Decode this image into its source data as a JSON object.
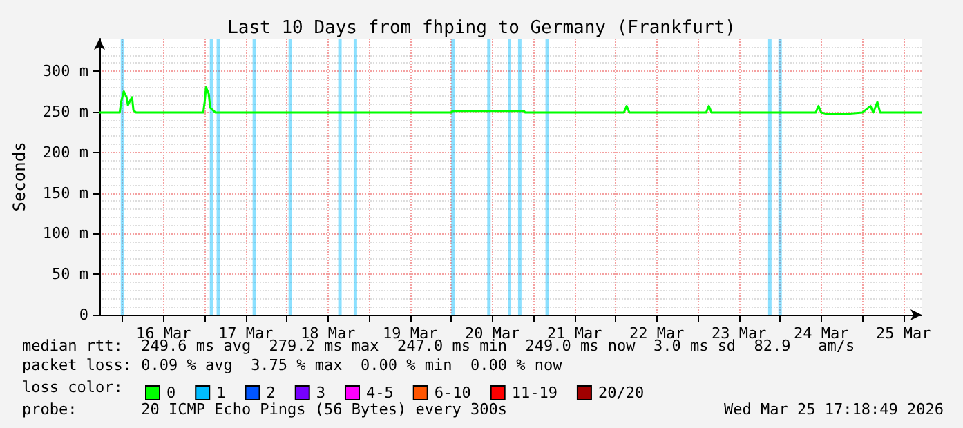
{
  "chart_data": {
    "type": "line",
    "title": "Last 10 Days from fhping to Germany (Frankfurt)",
    "ylabel": "Seconds",
    "legend_title": "loss color:",
    "legend": "bottom",
    "grid": true,
    "marker": "none",
    "line_style": "solid",
    "xlim": [
      "2026-03-15T17:18",
      "2026-03-25T17:18"
    ],
    "xticks": [
      {
        "value": "2026-03-16T00:00",
        "label": null
      },
      {
        "value": "2026-03-16T12:00",
        "label": "16 Mar"
      },
      {
        "value": "2026-03-17T00:00",
        "label": null
      },
      {
        "value": "2026-03-17T12:00",
        "label": "17 Mar"
      },
      {
        "value": "2026-03-18T00:00",
        "label": null
      },
      {
        "value": "2026-03-18T12:00",
        "label": "18 Mar"
      },
      {
        "value": "2026-03-19T00:00",
        "label": null
      },
      {
        "value": "2026-03-19T12:00",
        "label": "19 Mar"
      },
      {
        "value": "2026-03-20T00:00",
        "label": null
      },
      {
        "value": "2026-03-20T12:00",
        "label": "20 Mar"
      },
      {
        "value": "2026-03-21T00:00",
        "label": null
      },
      {
        "value": "2026-03-21T12:00",
        "label": "21 Mar"
      },
      {
        "value": "2026-03-22T00:00",
        "label": null
      },
      {
        "value": "2026-03-22T12:00",
        "label": "22 Mar"
      },
      {
        "value": "2026-03-23T00:00",
        "label": null
      },
      {
        "value": "2026-03-23T12:00",
        "label": "23 Mar"
      },
      {
        "value": "2026-03-24T00:00",
        "label": null
      },
      {
        "value": "2026-03-24T12:00",
        "label": "24 Mar"
      },
      {
        "value": "2026-03-25T00:00",
        "label": null
      },
      {
        "value": "2026-03-25T12:00",
        "label": "25 Mar"
      }
    ],
    "ylim": [
      0,
      340
    ],
    "yticks": [
      0,
      {
        "value": 50,
        "label": "50 m"
      },
      {
        "value": 100,
        "label": "100 m"
      },
      {
        "value": 150,
        "label": "150 m"
      },
      {
        "value": 200,
        "label": "200 m"
      },
      {
        "value": 250,
        "label": "250 m"
      },
      {
        "value": 300,
        "label": "300 m"
      }
    ],
    "x": [
      "2026-03-15T17:18",
      "2026-03-15T23:12",
      "2026-03-15T23:36",
      "2026-03-16T00:24",
      "2026-03-16T01:12",
      "2026-03-16T01:36",
      "2026-03-16T02:24",
      "2026-03-16T02:48",
      "2026-03-16T03:12",
      "2026-03-16T04:00",
      "2026-03-16T23:36",
      "2026-03-17T00:00",
      "2026-03-17T00:24",
      "2026-03-17T01:12",
      "2026-03-17T01:36",
      "2026-03-17T02:24",
      "2026-03-17T03:12",
      "2026-03-20T00:00",
      "2026-03-20T00:24",
      "2026-03-20T21:12",
      "2026-03-20T21:36",
      "2026-03-22T02:24",
      "2026-03-22T03:12",
      "2026-03-22T04:00",
      "2026-03-23T02:24",
      "2026-03-23T03:12",
      "2026-03-23T04:00",
      "2026-03-24T10:24",
      "2026-03-24T11:12",
      "2026-03-24T12:00",
      "2026-03-24T14:00",
      "2026-03-24T18:00",
      "2026-03-25T00:00",
      "2026-03-25T02:24",
      "2026-03-25T03:12",
      "2026-03-25T04:24",
      "2026-03-25T05:12",
      "2026-03-25T17:18"
    ],
    "series": [
      {
        "name": "0",
        "color": "#00ff00",
        "values": [
          249,
          249,
          262,
          275,
          268,
          258,
          265,
          268,
          252,
          249,
          249,
          262,
          280,
          272,
          255,
          252,
          249,
          249,
          251,
          251,
          249,
          249,
          257,
          249,
          249,
          257,
          249,
          249,
          257,
          249,
          247,
          247,
          249,
          257,
          249,
          262,
          249,
          249
        ]
      },
      {
        "name": "1",
        "color": "#00bbff",
        "values": [
          null,
          null,
          null,
          null,
          null,
          null,
          null,
          null,
          null,
          null,
          null,
          null,
          null,
          null,
          null,
          null,
          null,
          null,
          null,
          null,
          null,
          null,
          null,
          null,
          null,
          null,
          null,
          null,
          null,
          null,
          null,
          null,
          null,
          null,
          null,
          null,
          null,
          null
        ]
      },
      {
        "name": "2",
        "color": "#0055ff",
        "values": [
          null,
          null,
          null,
          null,
          null,
          null,
          null,
          null,
          null,
          null,
          null,
          null,
          null,
          null,
          null,
          null,
          null,
          null,
          null,
          null,
          null,
          null,
          null,
          null,
          null,
          null,
          null,
          null,
          null,
          null,
          null,
          null,
          null,
          null,
          null,
          null,
          null,
          null
        ]
      },
      {
        "name": "3",
        "color": "#7700ff",
        "values": [
          null,
          null,
          null,
          null,
          null,
          null,
          null,
          null,
          null,
          null,
          null,
          null,
          null,
          null,
          null,
          null,
          null,
          null,
          null,
          null,
          null,
          null,
          null,
          null,
          null,
          null,
          null,
          null,
          null,
          null,
          null,
          null,
          null,
          null,
          null,
          null,
          null,
          null
        ]
      },
      {
        "name": "4-5",
        "color": "#ff00ff",
        "values": [
          null,
          null,
          null,
          null,
          null,
          null,
          null,
          null,
          null,
          null,
          null,
          null,
          null,
          null,
          null,
          null,
          null,
          null,
          null,
          null,
          null,
          null,
          null,
          null,
          null,
          null,
          null,
          null,
          null,
          null,
          null,
          null,
          null,
          null,
          null,
          null,
          null,
          null
        ]
      },
      {
        "name": "6-10",
        "color": "#ff5500",
        "values": [
          null,
          null,
          null,
          null,
          null,
          null,
          null,
          null,
          null,
          null,
          null,
          null,
          null,
          null,
          null,
          null,
          null,
          null,
          null,
          null,
          null,
          null,
          null,
          null,
          null,
          null,
          null,
          null,
          null,
          null,
          null,
          null,
          null,
          null,
          null,
          null,
          null,
          null
        ]
      },
      {
        "name": "11-19",
        "color": "#ff0000",
        "values": [
          null,
          null,
          null,
          null,
          null,
          null,
          null,
          null,
          null,
          null,
          null,
          null,
          null,
          null,
          null,
          null,
          null,
          null,
          null,
          null,
          null,
          null,
          null,
          null,
          null,
          null,
          null,
          null,
          null,
          null,
          null,
          null,
          null,
          null,
          null,
          null,
          null,
          null
        ]
      },
      {
        "name": "20/20",
        "color": "#a10000",
        "values": [
          null,
          null,
          null,
          null,
          null,
          null,
          null,
          null,
          null,
          null,
          null,
          null,
          null,
          null,
          null,
          null,
          null,
          null,
          null,
          null,
          null,
          null,
          null,
          null,
          null,
          null,
          null,
          null,
          null,
          null,
          null,
          null,
          null,
          null,
          null,
          null,
          null,
          null
        ]
      }
    ],
    "bands": [
      {
        "axis": "x",
        "from": "2026-03-15T23:30",
        "to": "2026-03-16T00:30",
        "color": "#00bbff"
      },
      {
        "axis": "x",
        "from": "2026-03-17T01:30",
        "to": "2026-03-17T02:30",
        "color": "#00bbff"
      },
      {
        "axis": "x",
        "from": "2026-03-17T03:30",
        "to": "2026-03-17T04:30",
        "color": "#00bbff"
      },
      {
        "axis": "x",
        "from": "2026-03-17T14:00",
        "to": "2026-03-17T15:00",
        "color": "#00bbff"
      },
      {
        "axis": "x",
        "from": "2026-03-18T00:30",
        "to": "2026-03-18T01:30",
        "color": "#00bbff"
      },
      {
        "axis": "x",
        "from": "2026-03-18T15:00",
        "to": "2026-03-18T16:00",
        "color": "#00bbff"
      },
      {
        "axis": "x",
        "from": "2026-03-18T19:30",
        "to": "2026-03-18T20:30",
        "color": "#00bbff"
      },
      {
        "axis": "x",
        "from": "2026-03-20T00:00",
        "to": "2026-03-20T01:00",
        "color": "#00bbff"
      },
      {
        "axis": "x",
        "from": "2026-03-20T10:30",
        "to": "2026-03-20T11:30",
        "color": "#00bbff"
      },
      {
        "axis": "x",
        "from": "2026-03-20T16:30",
        "to": "2026-03-20T17:30",
        "color": "#00bbff"
      },
      {
        "axis": "x",
        "from": "2026-03-20T19:30",
        "to": "2026-03-20T20:30",
        "color": "#00bbff"
      },
      {
        "axis": "x",
        "from": "2026-03-21T03:30",
        "to": "2026-03-21T04:30",
        "color": "#00bbff"
      },
      {
        "axis": "x",
        "from": "2026-03-23T20:30",
        "to": "2026-03-23T21:30",
        "color": "#00bbff"
      },
      {
        "axis": "x",
        "from": "2026-03-23T23:30",
        "to": "2026-03-24T00:30",
        "color": "#00bbff"
      }
    ],
    "annotations": [
      "median rtt:  249.6 ms avg  279.2 ms max  247.0 ms min  249.0 ms now  3.0 ms sd  82.9   am/s",
      "packet loss: 0.09 % avg  3.75 % max  0.00 % min  0.00 % now",
      "probe:       20 ICMP Echo Pings (56 Bytes) every 300s",
      "Wed Mar 25 17:18:49 2026"
    ]
  }
}
